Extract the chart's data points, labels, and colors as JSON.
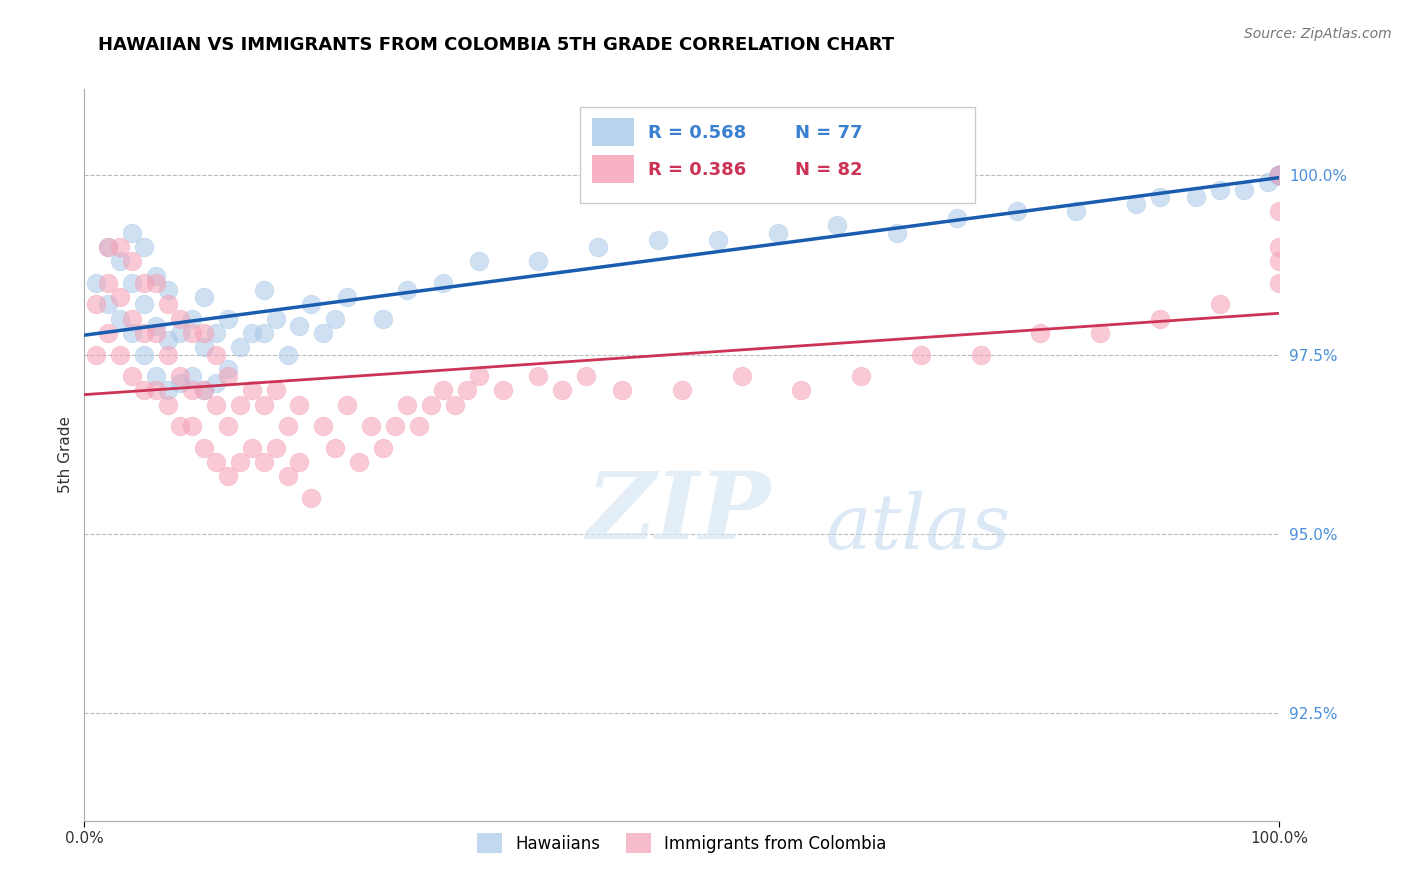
{
  "title": "HAWAIIAN VS IMMIGRANTS FROM COLOMBIA 5TH GRADE CORRELATION CHART",
  "source": "Source: ZipAtlas.com",
  "ylabel": "5th Grade",
  "ylabel_right_ticks": [
    100.0,
    97.5,
    95.0,
    92.5
  ],
  "xlim": [
    0.0,
    100.0
  ],
  "ylim": [
    91.0,
    101.2
  ],
  "legend_blue_label": "Hawaiians",
  "legend_pink_label": "Immigrants from Colombia",
  "blue_color": "#a8c8e8",
  "pink_color": "#f5a0b5",
  "trendline_blue": "#1a5cb0",
  "trendline_pink": "#cc3355",
  "hawaiians_x": [
    1,
    2,
    2,
    3,
    3,
    4,
    4,
    4,
    5,
    5,
    5,
    6,
    6,
    6,
    7,
    7,
    7,
    8,
    8,
    9,
    9,
    10,
    10,
    10,
    11,
    11,
    12,
    12,
    13,
    14,
    15,
    15,
    16,
    17,
    18,
    19,
    20,
    21,
    22,
    25,
    27,
    30,
    33,
    38,
    43,
    48,
    53,
    58,
    63,
    68,
    73,
    78,
    83,
    88,
    90,
    93,
    95,
    97,
    99,
    100,
    100,
    100,
    100,
    100,
    100,
    100,
    100,
    100,
    100,
    100,
    100,
    100,
    100,
    100,
    100,
    100,
    100
  ],
  "hawaiians_y": [
    98.5,
    98.2,
    99.0,
    98.0,
    98.8,
    97.8,
    98.5,
    99.2,
    97.5,
    98.2,
    99.0,
    97.2,
    97.9,
    98.6,
    97.0,
    97.7,
    98.4,
    97.1,
    97.8,
    97.2,
    98.0,
    97.0,
    97.6,
    98.3,
    97.1,
    97.8,
    97.3,
    98.0,
    97.6,
    97.8,
    97.8,
    98.4,
    98.0,
    97.5,
    97.9,
    98.2,
    97.8,
    98.0,
    98.3,
    98.0,
    98.4,
    98.5,
    98.8,
    98.8,
    99.0,
    99.1,
    99.1,
    99.2,
    99.3,
    99.2,
    99.4,
    99.5,
    99.5,
    99.6,
    99.7,
    99.7,
    99.8,
    99.8,
    99.9,
    100.0,
    100.0,
    100.0,
    100.0,
    100.0,
    100.0,
    100.0,
    100.0,
    100.0,
    100.0,
    100.0,
    100.0,
    100.0,
    100.0,
    100.0,
    100.0,
    100.0,
    100.0
  ],
  "colombia_x": [
    1,
    1,
    2,
    2,
    2,
    3,
    3,
    3,
    4,
    4,
    4,
    5,
    5,
    5,
    6,
    6,
    6,
    7,
    7,
    7,
    8,
    8,
    8,
    9,
    9,
    9,
    10,
    10,
    10,
    11,
    11,
    11,
    12,
    12,
    12,
    13,
    13,
    14,
    14,
    15,
    15,
    16,
    16,
    17,
    17,
    18,
    18,
    19,
    20,
    21,
    22,
    23,
    24,
    25,
    26,
    27,
    28,
    29,
    30,
    31,
    32,
    33,
    35,
    38,
    40,
    42,
    45,
    50,
    55,
    60,
    65,
    70,
    75,
    80,
    85,
    90,
    95,
    100,
    100,
    100,
    100,
    100
  ],
  "colombia_y": [
    97.5,
    98.2,
    97.8,
    98.5,
    99.0,
    97.5,
    98.3,
    99.0,
    97.2,
    98.0,
    98.8,
    97.0,
    97.8,
    98.5,
    97.0,
    97.8,
    98.5,
    96.8,
    97.5,
    98.2,
    96.5,
    97.2,
    98.0,
    96.5,
    97.0,
    97.8,
    96.2,
    97.0,
    97.8,
    96.0,
    96.8,
    97.5,
    95.8,
    96.5,
    97.2,
    96.0,
    96.8,
    96.2,
    97.0,
    96.0,
    96.8,
    96.2,
    97.0,
    95.8,
    96.5,
    96.0,
    96.8,
    95.5,
    96.5,
    96.2,
    96.8,
    96.0,
    96.5,
    96.2,
    96.5,
    96.8,
    96.5,
    96.8,
    97.0,
    96.8,
    97.0,
    97.2,
    97.0,
    97.2,
    97.0,
    97.2,
    97.0,
    97.0,
    97.2,
    97.0,
    97.2,
    97.5,
    97.5,
    97.8,
    97.8,
    98.0,
    98.2,
    98.5,
    98.8,
    99.0,
    99.5,
    100.0
  ]
}
